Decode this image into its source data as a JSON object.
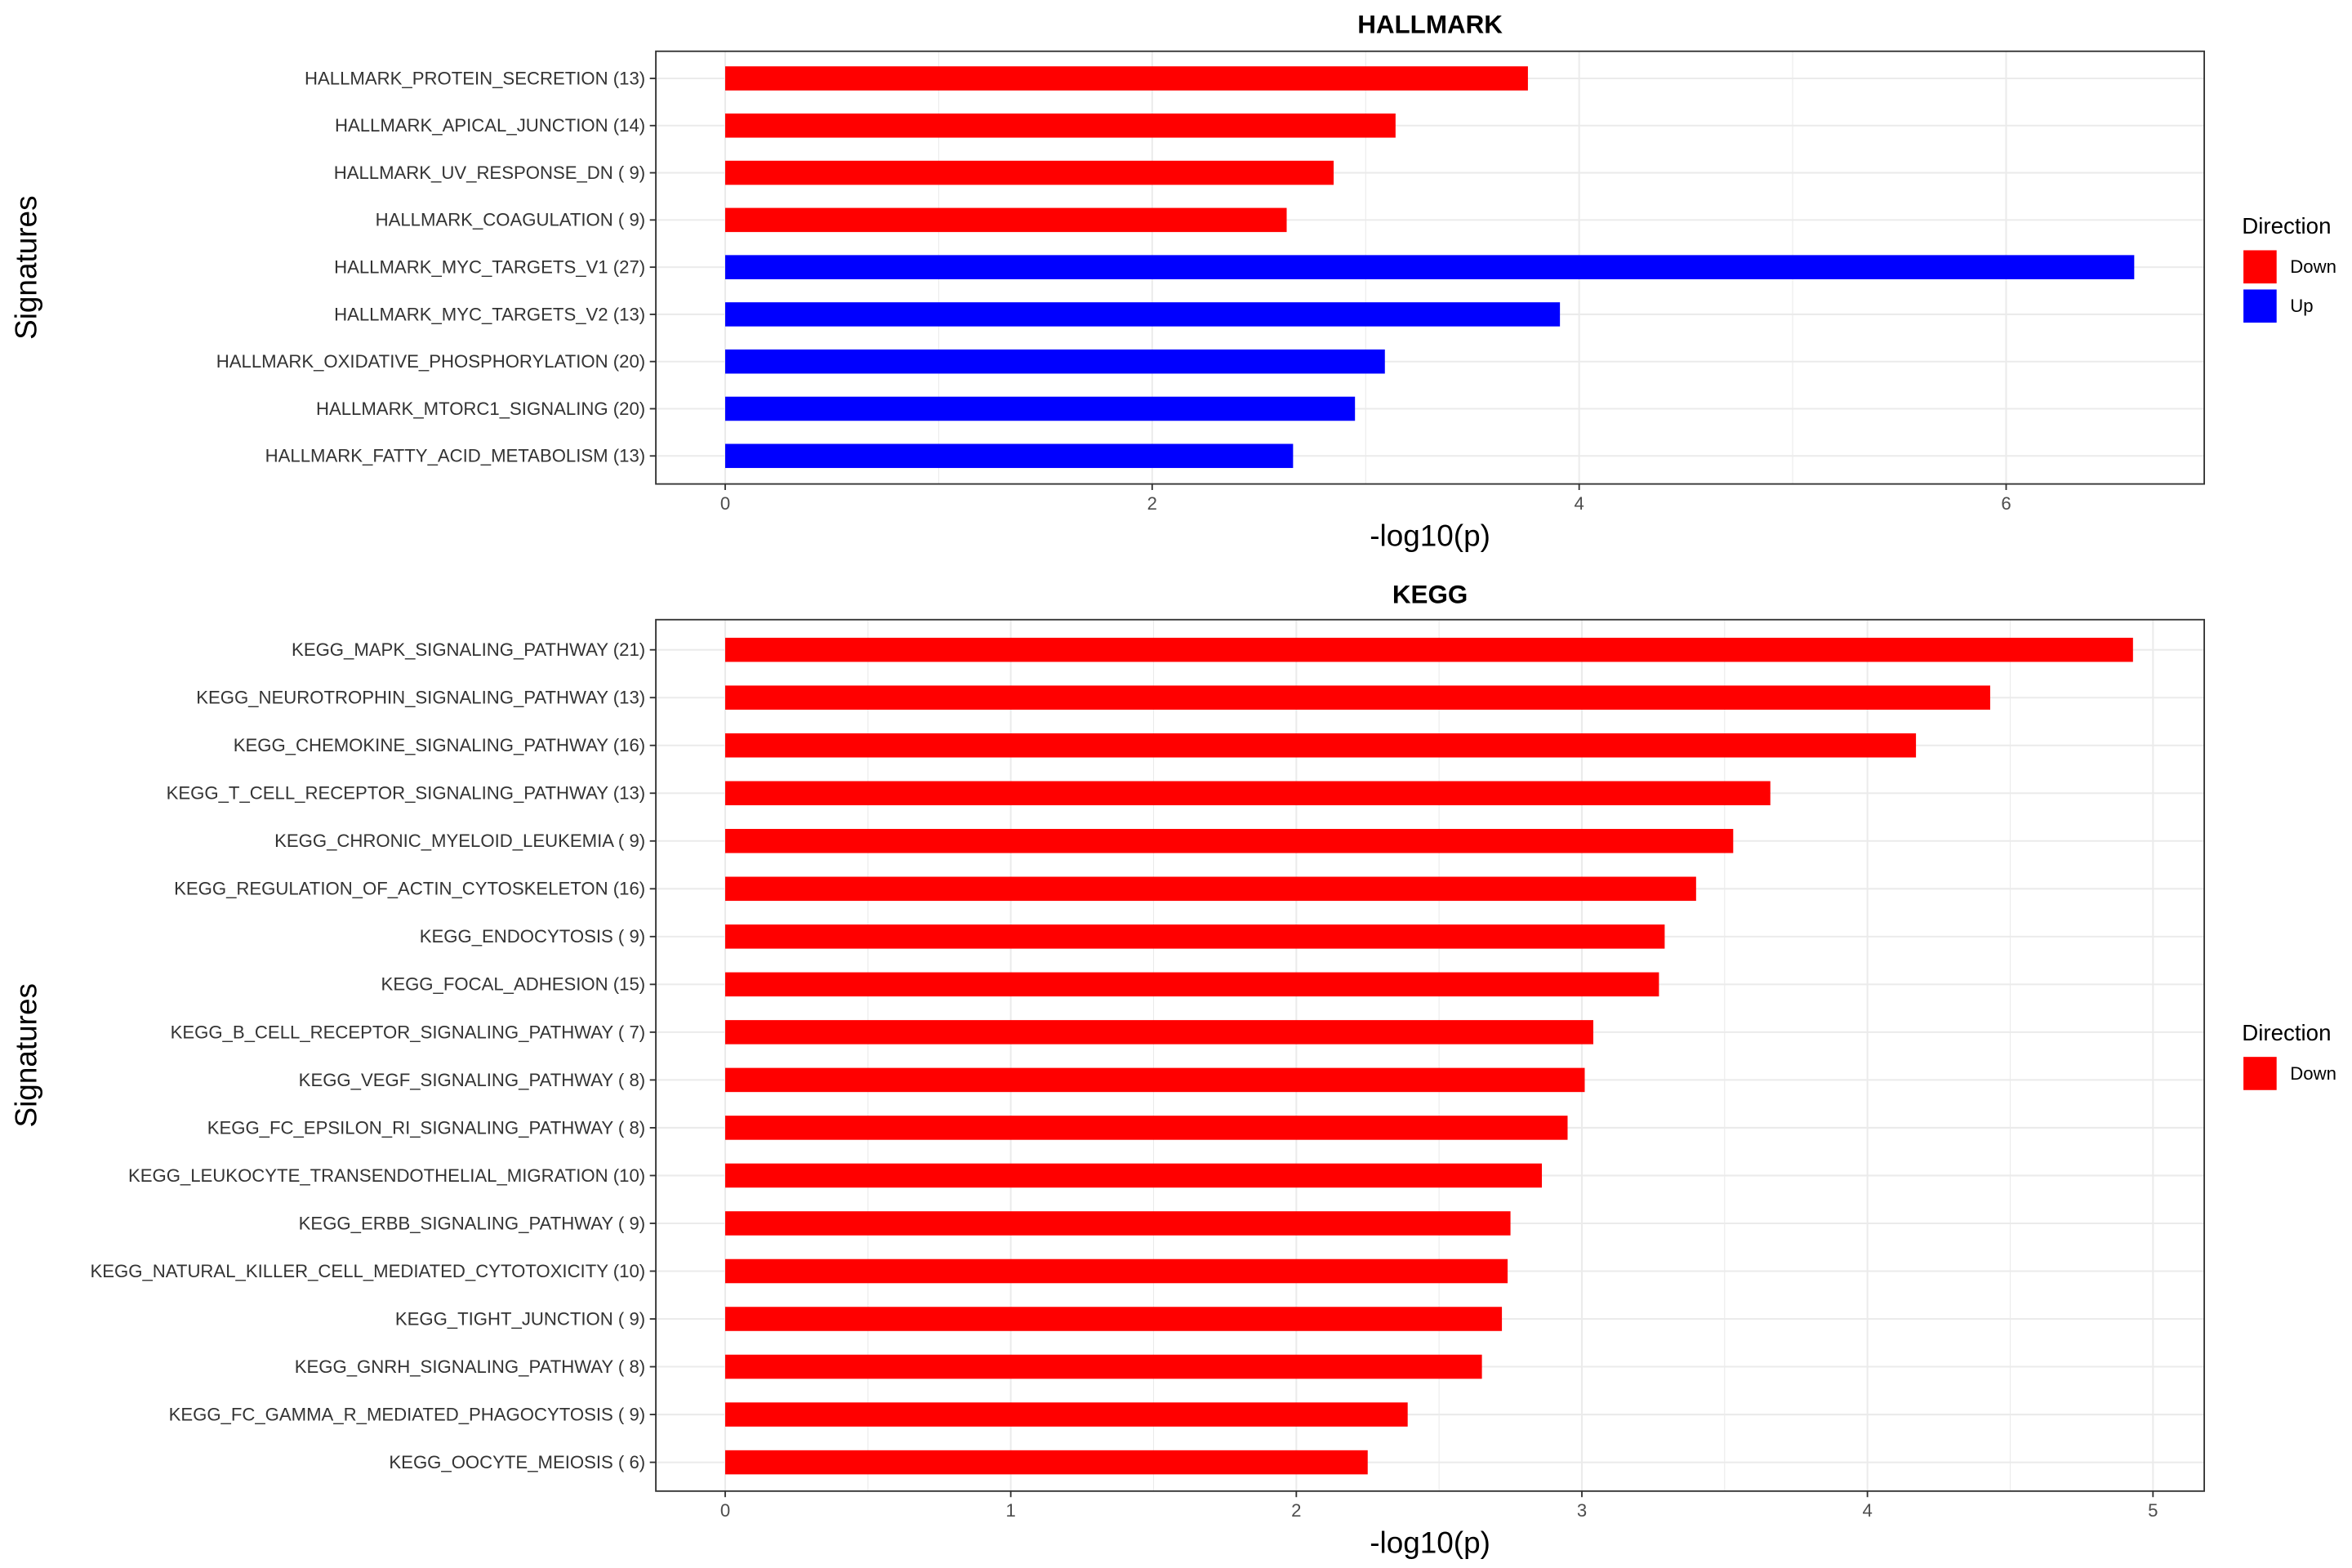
{
  "chart_data": [
    {
      "type": "bar",
      "orientation": "horizontal",
      "title": "HALLMARK",
      "xlabel": "-log10(p)",
      "ylabel": "Signatures",
      "xlim": [
        0,
        6.9
      ],
      "xticks": [
        "0",
        "2",
        "4",
        "6"
      ],
      "legend": {
        "title": "Direction",
        "position": "right",
        "entries": [
          {
            "label": "Down",
            "color": "#FF0000"
          },
          {
            "label": "Up",
            "color": "#0000FF"
          }
        ]
      },
      "categories": [
        "HALLMARK_PROTEIN_SECRETION (13)",
        "HALLMARK_APICAL_JUNCTION (14)",
        "HALLMARK_UV_RESPONSE_DN ( 9)",
        "HALLMARK_COAGULATION ( 9)",
        "HALLMARK_MYC_TARGETS_V1 (27)",
        "HALLMARK_MYC_TARGETS_V2 (13)",
        "HALLMARK_OXIDATIVE_PHOSPHORYLATION (20)",
        "HALLMARK_MTORC1_SIGNALING (20)",
        "HALLMARK_FATTY_ACID_METABOLISM (13)"
      ],
      "values": [
        3.76,
        3.14,
        2.85,
        2.63,
        6.6,
        3.91,
        3.09,
        2.95,
        2.66
      ],
      "direction": [
        "Down",
        "Down",
        "Down",
        "Down",
        "Up",
        "Up",
        "Up",
        "Up",
        "Up"
      ]
    },
    {
      "type": "bar",
      "orientation": "horizontal",
      "title": "KEGG",
      "xlabel": "-log10(p)",
      "ylabel": "Signatures",
      "xlim": [
        0,
        5.2
      ],
      "xticks": [
        "0",
        "1",
        "2",
        "3",
        "4",
        "5"
      ],
      "legend": {
        "title": "Direction",
        "position": "right",
        "entries": [
          {
            "label": "Down",
            "color": "#FF0000"
          }
        ]
      },
      "categories": [
        "KEGG_MAPK_SIGNALING_PATHWAY (21)",
        "KEGG_NEUROTROPHIN_SIGNALING_PATHWAY (13)",
        "KEGG_CHEMOKINE_SIGNALING_PATHWAY (16)",
        "KEGG_T_CELL_RECEPTOR_SIGNALING_PATHWAY (13)",
        "KEGG_CHRONIC_MYELOID_LEUKEMIA ( 9)",
        "KEGG_REGULATION_OF_ACTIN_CYTOSKELETON (16)",
        "KEGG_ENDOCYTOSIS ( 9)",
        "KEGG_FOCAL_ADHESION (15)",
        "KEGG_B_CELL_RECEPTOR_SIGNALING_PATHWAY ( 7)",
        "KEGG_VEGF_SIGNALING_PATHWAY ( 8)",
        "KEGG_FC_EPSILON_RI_SIGNALING_PATHWAY ( 8)",
        "KEGG_LEUKOCYTE_TRANSENDOTHELIAL_MIGRATION (10)",
        "KEGG_ERBB_SIGNALING_PATHWAY ( 9)",
        "KEGG_NATURAL_KILLER_CELL_MEDIATED_CYTOTOXICITY (10)",
        "KEGG_TIGHT_JUNCTION ( 9)",
        "KEGG_GNRH_SIGNALING_PATHWAY ( 8)",
        "KEGG_FC_GAMMA_R_MEDIATED_PHAGOCYTOSIS ( 9)",
        "KEGG_OOCYTE_MEIOSIS ( 6)"
      ],
      "values": [
        4.93,
        4.43,
        4.17,
        3.66,
        3.53,
        3.4,
        3.29,
        3.27,
        3.04,
        3.01,
        2.95,
        2.86,
        2.75,
        2.74,
        2.72,
        2.65,
        2.39,
        2.25
      ],
      "direction": [
        "Down",
        "Down",
        "Down",
        "Down",
        "Down",
        "Down",
        "Down",
        "Down",
        "Down",
        "Down",
        "Down",
        "Down",
        "Down",
        "Down",
        "Down",
        "Down",
        "Down",
        "Down"
      ]
    }
  ]
}
